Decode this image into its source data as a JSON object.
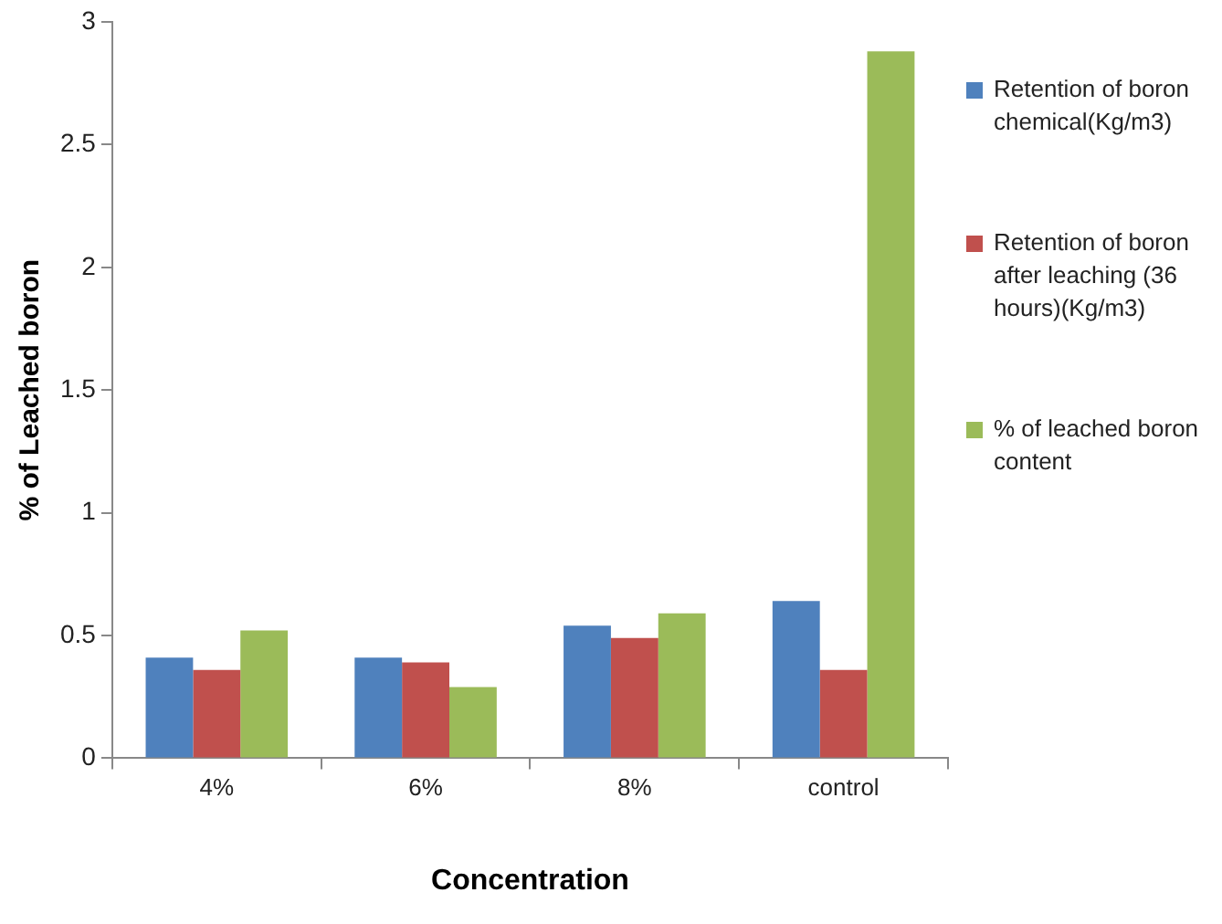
{
  "chart_data": {
    "type": "bar",
    "xlabel": "Concentration",
    "ylabel": "% of Leached boron",
    "categories": [
      "4%",
      "6%",
      "8%",
      "control"
    ],
    "series": [
      {
        "name": "Retention of boron chemical(Kg/m3)",
        "color": "#4f81bd",
        "values": [
          0.41,
          0.41,
          0.54,
          0.64
        ]
      },
      {
        "name": "Retention of boron  after leaching (36 hours)(Kg/m3)",
        "color": "#c0504d",
        "values": [
          0.36,
          0.39,
          0.49,
          0.36
        ]
      },
      {
        "name": "% of leached boron content",
        "color": "#9bbb59",
        "values": [
          0.52,
          0.29,
          0.59,
          2.88
        ]
      }
    ],
    "ylim": [
      0,
      3
    ],
    "yticks": [
      0,
      0.5,
      1,
      1.5,
      2,
      2.5,
      3
    ],
    "grid": false,
    "legend": "right"
  }
}
